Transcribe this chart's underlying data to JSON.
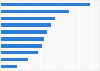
{
  "values": [
    6.8,
    5.2,
    4.1,
    3.8,
    3.5,
    3.3,
    3.1,
    2.8,
    2.1,
    1.2
  ],
  "bar_color": "#2d7dd2",
  "background_color": "#f0f0f0",
  "plot_bg_color": "#f8f8f8",
  "grid_color": "#ffffff",
  "xlim": [
    0,
    7.5
  ],
  "figsize": [
    1.0,
    0.71
  ],
  "dpi": 100,
  "bar_height": 0.45
}
